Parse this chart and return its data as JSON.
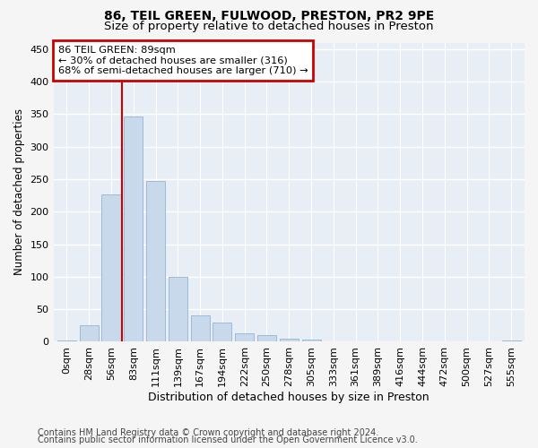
{
  "title1": "86, TEIL GREEN, FULWOOD, PRESTON, PR2 9PE",
  "title2": "Size of property relative to detached houses in Preston",
  "xlabel": "Distribution of detached houses by size in Preston",
  "ylabel": "Number of detached properties",
  "footnote1": "Contains HM Land Registry data © Crown copyright and database right 2024.",
  "footnote2": "Contains public sector information licensed under the Open Government Licence v3.0.",
  "bar_labels": [
    "0sqm",
    "28sqm",
    "56sqm",
    "83sqm",
    "111sqm",
    "139sqm",
    "167sqm",
    "194sqm",
    "222sqm",
    "250sqm",
    "278sqm",
    "305sqm",
    "333sqm",
    "361sqm",
    "389sqm",
    "416sqm",
    "444sqm",
    "472sqm",
    "500sqm",
    "527sqm",
    "555sqm"
  ],
  "bar_values": [
    2,
    25,
    227,
    347,
    247,
    100,
    40,
    30,
    13,
    10,
    5,
    4,
    1,
    0,
    1,
    0,
    1,
    0,
    0,
    0,
    2
  ],
  "bar_color": "#c9d9ec",
  "bar_edge_color": "#a0b8d8",
  "property_bin_index": 3,
  "annotation_title": "86 TEIL GREEN: 89sqm",
  "annotation_line1": "← 30% of detached houses are smaller (316)",
  "annotation_line2": "68% of semi-detached houses are larger (710) →",
  "annotation_box_color": "#ffffff",
  "annotation_box_edge": "#cc0000",
  "ylim": [
    0,
    460
  ],
  "yticks": [
    0,
    50,
    100,
    150,
    200,
    250,
    300,
    350,
    400,
    450
  ],
  "bg_color": "#e8eef5",
  "grid_color": "#ffffff",
  "red_line_color": "#cc0000",
  "title1_fontsize": 10,
  "title2_fontsize": 9.5,
  "xlabel_fontsize": 9,
  "ylabel_fontsize": 8.5,
  "footnote_fontsize": 7,
  "tick_fontsize": 8
}
